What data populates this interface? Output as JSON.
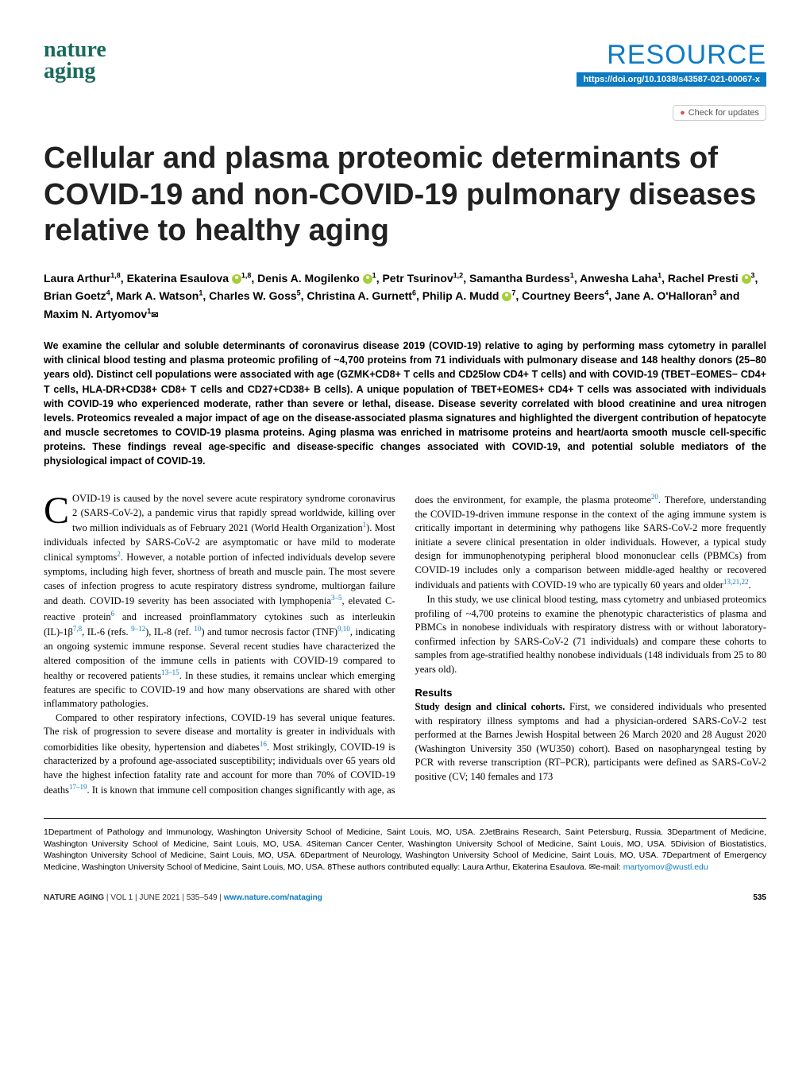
{
  "journal": {
    "line1": "nature",
    "line2": "aging"
  },
  "header": {
    "resource": "RESOURCE",
    "doi": "https://doi.org/10.1038/s43587-021-00067-x",
    "check_updates": "Check for updates"
  },
  "title": "Cellular and plasma proteomic determinants of COVID-19 and non-COVID-19 pulmonary diseases relative to healthy aging",
  "authors_html": "Laura Arthur<sup>1,8</sup>, Ekaterina Esaulova <span class='orcid'></span><sup>1,8</sup>, Denis A. Mogilenko <span class='orcid'></span><sup>1</sup>, Petr Tsurinov<sup>1,2</sup>, Samantha Burdess<sup>1</sup>, Anwesha Laha<sup>1</sup>, Rachel Presti <span class='orcid'></span><sup>3</sup>, Brian Goetz<sup>4</sup>, Mark A. Watson<sup>1</sup>, Charles W. Goss<sup>5</sup>, Christina A. Gurnett<sup>6</sup>, Philip A. Mudd <span class='orcid'></span><sup>7</sup>, Courtney Beers<sup>4</sup>, Jane A. O'Halloran<sup>3</sup> and Maxim N. Artyomov<sup>1</sup><span class='mail-icon'></span>",
  "abstract": "We examine the cellular and soluble determinants of coronavirus disease 2019 (COVID-19) relative to aging by performing mass cytometry in parallel with clinical blood testing and plasma proteomic profiling of ~4,700 proteins from 71 individuals with pulmonary disease and 148 healthy donors (25–80 years old). Distinct cell populations were associated with age (GZMK+CD8+ T cells and CD25low CD4+ T cells) and with COVID-19 (TBET−EOMES− CD4+ T cells, HLA-DR+CD38+ CD8+ T cells and CD27+CD38+ B cells). A unique population of TBET+EOMES+ CD4+ T cells was associated with individuals with COVID-19 who experienced moderate, rather than severe or lethal, disease. Disease severity correlated with blood creatinine and urea nitrogen levels. Proteomics revealed a major impact of age on the disease-associated plasma signatures and highlighted the divergent contribution of hepatocyte and muscle secretomes to COVID-19 plasma proteins. Aging plasma was enriched in matrisome proteins and heart/aorta smooth muscle cell-specific proteins. These findings reveal age-specific and disease-specific changes associated with COVID-19, and potential soluble mediators of the physiological impact of COVID-19.",
  "body": {
    "p1": "OVID-19 is caused by the novel severe acute respiratory syndrome coronavirus 2 (SARS-CoV-2), a pandemic virus that rapidly spread worldwide, killing over two million individuals as of February 2021 (World Health Organization",
    "p1b": "). Most individuals infected by SARS-CoV-2 are asymptomatic or have mild to moderate clinical symptoms",
    "p1c": ". However, a notable portion of infected individuals develop severe symptoms, including high fever, shortness of breath and muscle pain. The most severe cases of infection progress to acute respiratory distress syndrome, multiorgan failure and death. COVID-19 severity has been associated with lymphopenia",
    "p1d": ", elevated C-reactive protein",
    "p1e": " and increased proinflammatory cytokines such as interleukin (IL)-1β",
    "p1f": ", IL-6 (refs. ",
    "p1g": "), IL-8 (ref. ",
    "p1h": ") and tumor necrosis factor (TNF)",
    "p1i": ", indicating an ongoing systemic immune response. Several recent studies have characterized the altered composition of the immune cells in patients with COVID-19 compared to healthy or recovered patients",
    "p1j": ". In these studies, it remains unclear which emerging features are specific to COVID-19 and how many observations are shared with other inflammatory pathologies.",
    "p2a": "Compared to other respiratory infections, COVID-19 has several unique features. The risk of progression to severe disease and mortality is greater in individuals with comorbidities like obesity, hypertension and diabetes",
    "p2b": ". Most strikingly, COVID-19 is characterized by a profound age-associated susceptibility; individuals over 65 years old have the highest infection fatality rate and account for more than 70% of COVID-19 deaths",
    "p2c": ". It is known that immune ",
    "p3a": "cell composition changes significantly with age, as does the environment, for example, the plasma proteome",
    "p3b": ". Therefore, understanding the COVID-19-driven immune response in the context of the aging immune system is critically important in determining why pathogens like SARS-CoV-2 more frequently initiate a severe clinical presentation in older individuals. However, a typical study design for immunophenotyping peripheral blood mononuclear cells (PBMCs) from COVID-19 includes only a comparison between middle-aged healthy or recovered individuals and patients with COVID-19 who are typically 60 years and older",
    "p3c": ".",
    "p4": "In this study, we use clinical blood testing, mass cytometry and unbiased proteomics profiling of ~4,700 proteins to examine the phenotypic characteristics of plasma and PBMCs in nonobese individuals with respiratory distress with or without laboratory-confirmed infection by SARS-CoV-2 (71 individuals) and compare these cohorts to samples from age-stratified healthy nonobese individuals (148 individuals from 25 to 80 years old).",
    "results_head": "Results",
    "results_sub": "Study design and clinical cohorts.",
    "p5a": " First, we considered individuals who presented with respiratory illness symptoms and had a physician-ordered SARS-CoV-2 test performed at the Barnes Jewish Hospital between 26 March 2020 and 28 August 2020 (Washington University 350 (WU350) cohort). Based on nasopharyngeal testing by PCR with reverse transcription (RT–PCR), participants were defined as SARS-CoV-2 positive (CV; 140 females and 173 ",
    "refs": {
      "r1": "1",
      "r2": "2",
      "r35": "3–5",
      "r6": "6",
      "r78": "7,8",
      "r912": "9–12",
      "r10": "10",
      "r910": "9,10",
      "r1315": "13–15",
      "r16": "16",
      "r1719": "17–19",
      "r20": "20",
      "r132122": "13,21,22"
    }
  },
  "affiliations": "1Department of Pathology and Immunology, Washington University School of Medicine, Saint Louis, MO, USA. 2JetBrains Research, Saint Petersburg, Russia. 3Department of Medicine, Washington University School of Medicine, Saint Louis, MO, USA. 4Siteman Cancer Center, Washington University School of Medicine, Saint Louis, MO, USA. 5Division of Biostatistics, Washington University School of Medicine, Saint Louis, MO, USA. 6Department of Neurology, Washington University School of Medicine, Saint Louis, MO, USA. 7Department of Emergency Medicine, Washington University School of Medicine, Saint Louis, MO, USA. 8These authors contributed equally: Laura Arthur, Ekaterina Esaulova. ✉e-mail: ",
  "email": "martyomov@wustl.edu",
  "footer": {
    "left_bold": "NATURE AGING",
    "left_rest": " | VOL 1 | JUNE 2021 | 535–549 | ",
    "left_link": "www.nature.com/nataging",
    "page": "535"
  }
}
